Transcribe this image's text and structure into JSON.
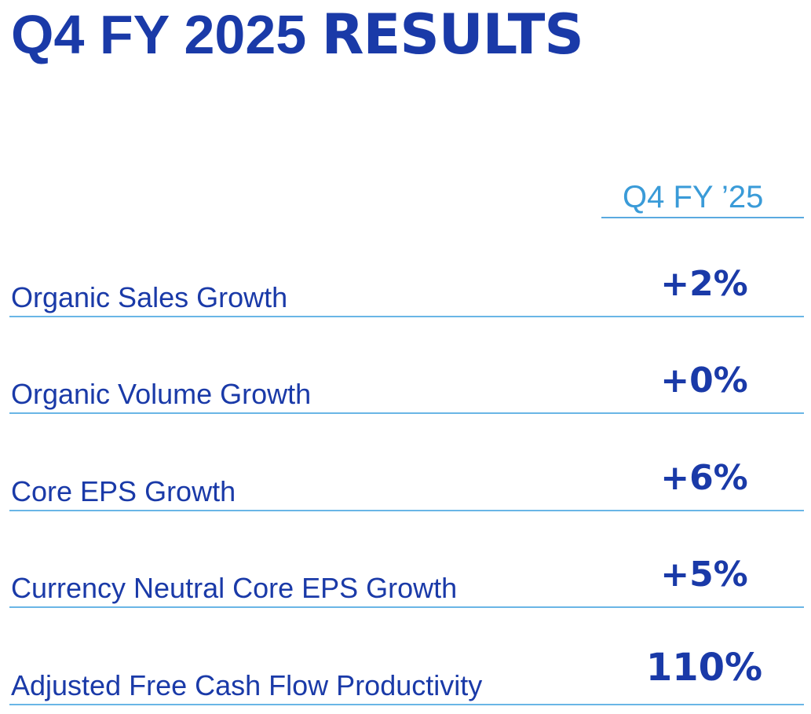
{
  "title": {
    "prefix": "Q4 FY 2025 ",
    "emphasis": "RESULTS"
  },
  "column_header": "Q4 FY ’25",
  "metrics": [
    {
      "label": "Organic Sales Growth",
      "value": "+2%"
    },
    {
      "label": "Organic Volume Growth",
      "value": "+0%"
    },
    {
      "label": "Core EPS Growth",
      "value": "+6%"
    },
    {
      "label": "Currency Neutral Core EPS Growth",
      "value": "+5%"
    },
    {
      "label": "Adjusted Free Cash Flow Productivity",
      "value": "110%"
    }
  ],
  "colors": {
    "primary": "#1a3aa8",
    "accent": "#3a9bd8",
    "rule": "#6ab6e6"
  }
}
